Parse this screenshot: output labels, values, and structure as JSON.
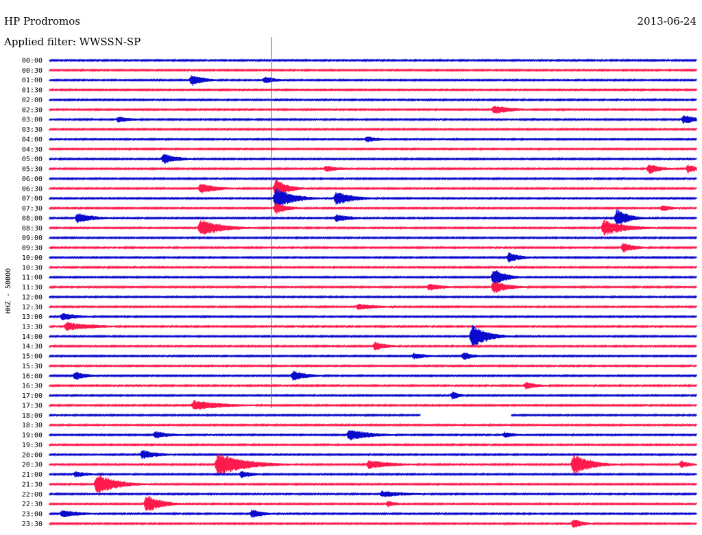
{
  "header": {
    "station": "HP Prodromos",
    "date": "2013-06-24",
    "filter": "Applied filter: WWSSN-SP"
  },
  "chart_data": {
    "type": "line",
    "title": "HP Prodromos",
    "subtitle": "Applied filter: WWSSN-SP",
    "ylabel": "HHZ - 50000",
    "row_labels": [
      "00:00",
      "00:30",
      "01:00",
      "01:30",
      "02:00",
      "02:30",
      "03:00",
      "03:30",
      "04:00",
      "04:30",
      "05:00",
      "05:30",
      "06:00",
      "06:30",
      "07:00",
      "07:30",
      "08:00",
      "08:30",
      "09:00",
      "09:30",
      "10:00",
      "10:30",
      "11:00",
      "11:30",
      "12:00",
      "12:30",
      "13:00",
      "13:30",
      "14:00",
      "14:30",
      "15:00",
      "15:30",
      "16:00",
      "16:30",
      "17:00",
      "17:30",
      "18:00",
      "18:30",
      "19:00",
      "19:30",
      "20:00",
      "20:30",
      "21:00",
      "21:30",
      "22:00",
      "22:30",
      "23:00",
      "23:30"
    ],
    "row_minutes": 30,
    "series_colors": [
      "#0a0acd",
      "#ff1a4d"
    ],
    "events": [
      {
        "row": 2,
        "minute": 6.6,
        "amp": 9,
        "dur": 1.0
      },
      {
        "row": 2,
        "minute": 10.0,
        "amp": 6,
        "dur": 1.0
      },
      {
        "row": 5,
        "minute": 20.6,
        "amp": 7,
        "dur": 1.6
      },
      {
        "row": 6,
        "minute": 3.2,
        "amp": 5,
        "dur": 1.2
      },
      {
        "row": 6,
        "minute": 29.4,
        "amp": 7,
        "dur": 1.2
      },
      {
        "row": 8,
        "minute": 14.7,
        "amp": 5,
        "dur": 1.2
      },
      {
        "row": 10,
        "minute": 5.3,
        "amp": 8,
        "dur": 1.2
      },
      {
        "row": 11,
        "minute": 12.8,
        "amp": 5,
        "dur": 1.4
      },
      {
        "row": 11,
        "minute": 27.8,
        "amp": 8,
        "dur": 1.0
      },
      {
        "row": 11,
        "minute": 29.6,
        "amp": 7,
        "dur": 0.8
      },
      {
        "row": 13,
        "minute": 7.0,
        "amp": 8,
        "dur": 1.4
      },
      {
        "row": 13,
        "minute": 10.5,
        "amp": 15,
        "dur": 1.0
      },
      {
        "row": 14,
        "minute": 10.5,
        "amp": 16,
        "dur": 1.4
      },
      {
        "row": 14,
        "minute": 13.3,
        "amp": 11,
        "dur": 1.4
      },
      {
        "row": 15,
        "minute": 10.5,
        "amp": 9,
        "dur": 1.0
      },
      {
        "row": 15,
        "minute": 28.4,
        "amp": 5,
        "dur": 1.0
      },
      {
        "row": 16,
        "minute": 1.3,
        "amp": 8,
        "dur": 1.4
      },
      {
        "row": 16,
        "minute": 13.3,
        "amp": 6,
        "dur": 1.4
      },
      {
        "row": 16,
        "minute": 26.3,
        "amp": 14,
        "dur": 1.0
      },
      {
        "row": 17,
        "minute": 7.0,
        "amp": 13,
        "dur": 1.8
      },
      {
        "row": 17,
        "minute": 25.7,
        "amp": 12,
        "dur": 1.8
      },
      {
        "row": 19,
        "minute": 26.6,
        "amp": 8,
        "dur": 1.0
      },
      {
        "row": 20,
        "minute": 21.3,
        "amp": 8,
        "dur": 1.0
      },
      {
        "row": 22,
        "minute": 20.6,
        "amp": 13,
        "dur": 1.0
      },
      {
        "row": 23,
        "minute": 17.6,
        "amp": 6,
        "dur": 1.2
      },
      {
        "row": 23,
        "minute": 20.6,
        "amp": 10,
        "dur": 1.2
      },
      {
        "row": 25,
        "minute": 14.3,
        "amp": 5,
        "dur": 1.8
      },
      {
        "row": 26,
        "minute": 0.6,
        "amp": 6,
        "dur": 1.4
      },
      {
        "row": 27,
        "minute": 0.8,
        "amp": 7,
        "dur": 2.2
      },
      {
        "row": 28,
        "minute": 19.6,
        "amp": 18,
        "dur": 1.2
      },
      {
        "row": 29,
        "minute": 15.1,
        "amp": 7,
        "dur": 1.0
      },
      {
        "row": 30,
        "minute": 16.9,
        "amp": 5,
        "dur": 1.2
      },
      {
        "row": 30,
        "minute": 19.2,
        "amp": 7,
        "dur": 0.8
      },
      {
        "row": 32,
        "minute": 1.2,
        "amp": 7,
        "dur": 1.0
      },
      {
        "row": 32,
        "minute": 11.3,
        "amp": 8,
        "dur": 1.2
      },
      {
        "row": 33,
        "minute": 22.1,
        "amp": 6,
        "dur": 1.0
      },
      {
        "row": 34,
        "minute": 18.7,
        "amp": 7,
        "dur": 0.6
      },
      {
        "row": 35,
        "minute": 6.7,
        "amp": 8,
        "dur": 2.4
      },
      {
        "row": 38,
        "minute": 4.9,
        "amp": 6,
        "dur": 1.4
      },
      {
        "row": 38,
        "minute": 13.9,
        "amp": 9,
        "dur": 1.8
      },
      {
        "row": 38,
        "minute": 21.1,
        "amp": 5,
        "dur": 1.0
      },
      {
        "row": 40,
        "minute": 4.3,
        "amp": 7,
        "dur": 1.4
      },
      {
        "row": 41,
        "minute": 7.8,
        "amp": 18,
        "dur": 2.2
      },
      {
        "row": 41,
        "minute": 14.8,
        "amp": 7,
        "dur": 2.0
      },
      {
        "row": 41,
        "minute": 24.3,
        "amp": 16,
        "dur": 1.4
      },
      {
        "row": 41,
        "minute": 29.3,
        "amp": 6,
        "dur": 0.8
      },
      {
        "row": 42,
        "minute": 1.2,
        "amp": 5,
        "dur": 1.2
      },
      {
        "row": 42,
        "minute": 8.9,
        "amp": 6,
        "dur": 1.0
      },
      {
        "row": 43,
        "minute": 2.2,
        "amp": 16,
        "dur": 1.6
      },
      {
        "row": 44,
        "minute": 15.4,
        "amp": 5,
        "dur": 2.4
      },
      {
        "row": 45,
        "minute": 4.5,
        "amp": 14,
        "dur": 1.2
      },
      {
        "row": 45,
        "minute": 15.7,
        "amp": 5,
        "dur": 0.8
      },
      {
        "row": 46,
        "minute": 0.6,
        "amp": 6,
        "dur": 1.6
      },
      {
        "row": 46,
        "minute": 9.4,
        "amp": 7,
        "dur": 1.0
      },
      {
        "row": 47,
        "minute": 24.3,
        "amp": 8,
        "dur": 0.8
      }
    ],
    "gaps": [
      {
        "row": 36,
        "start_minute": 17.2,
        "end_minute": 21.4
      }
    ],
    "marker": {
      "minute": 10.3,
      "row_start": 0,
      "row_end": 35
    }
  }
}
